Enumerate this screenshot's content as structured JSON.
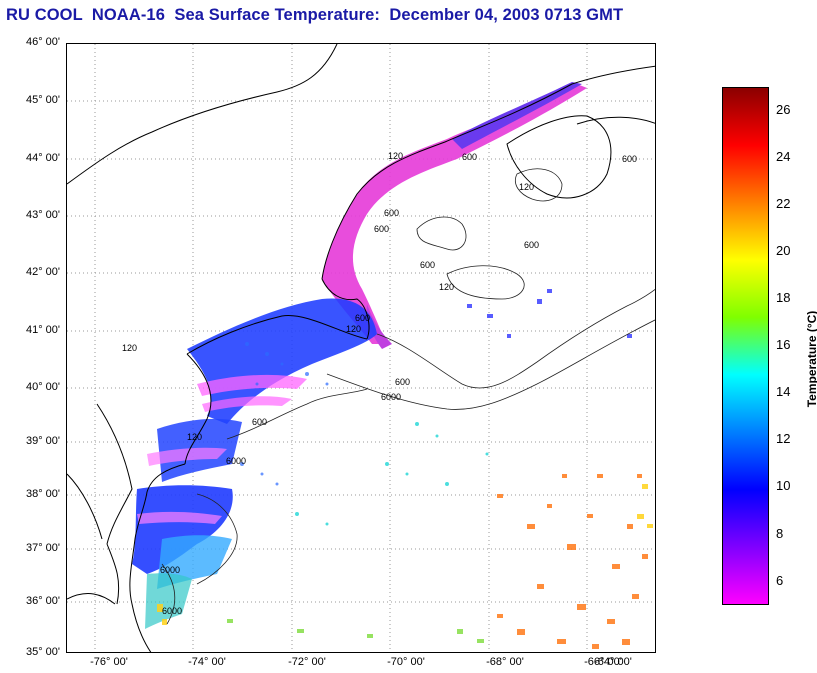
{
  "title": "RU COOL  NOAA-16  Sea Surface Temperature:  December 04, 2003 0713 GMT",
  "map": {
    "lat_labels": [
      "46° 00'",
      "45° 00'",
      "44° 00'",
      "43° 00'",
      "42° 00'",
      "41° 00'",
      "40° 00'",
      "39° 00'",
      "38° 00'",
      "37° 00'",
      "36° 00'",
      "35° 00'"
    ],
    "lon_labels": [
      "-76° 00'",
      "-74° 00'",
      "-72° 00'",
      "-70° 00'",
      "-68° 00'",
      "-66° 00'",
      "-64° 00'"
    ],
    "contour_labels": [
      "120",
      "600",
      "600",
      "600",
      "600",
      "120",
      "600",
      "120",
      "6000",
      "600",
      "600",
      "120",
      "6000",
      "120",
      "6000",
      "600",
      "600",
      "120",
      "6000"
    ]
  },
  "colorbar": {
    "label": "Temperature (°C)",
    "ticks": [
      "26",
      "24",
      "22",
      "20",
      "18",
      "16",
      "14",
      "12",
      "10",
      "8",
      "6"
    ],
    "colors": [
      "#8b0000",
      "#ff0000",
      "#ff7f00",
      "#ffff00",
      "#7fff00",
      "#00ffff",
      "#007fff",
      "#0000ff",
      "#7f00ff",
      "#ff00ff"
    ]
  }
}
